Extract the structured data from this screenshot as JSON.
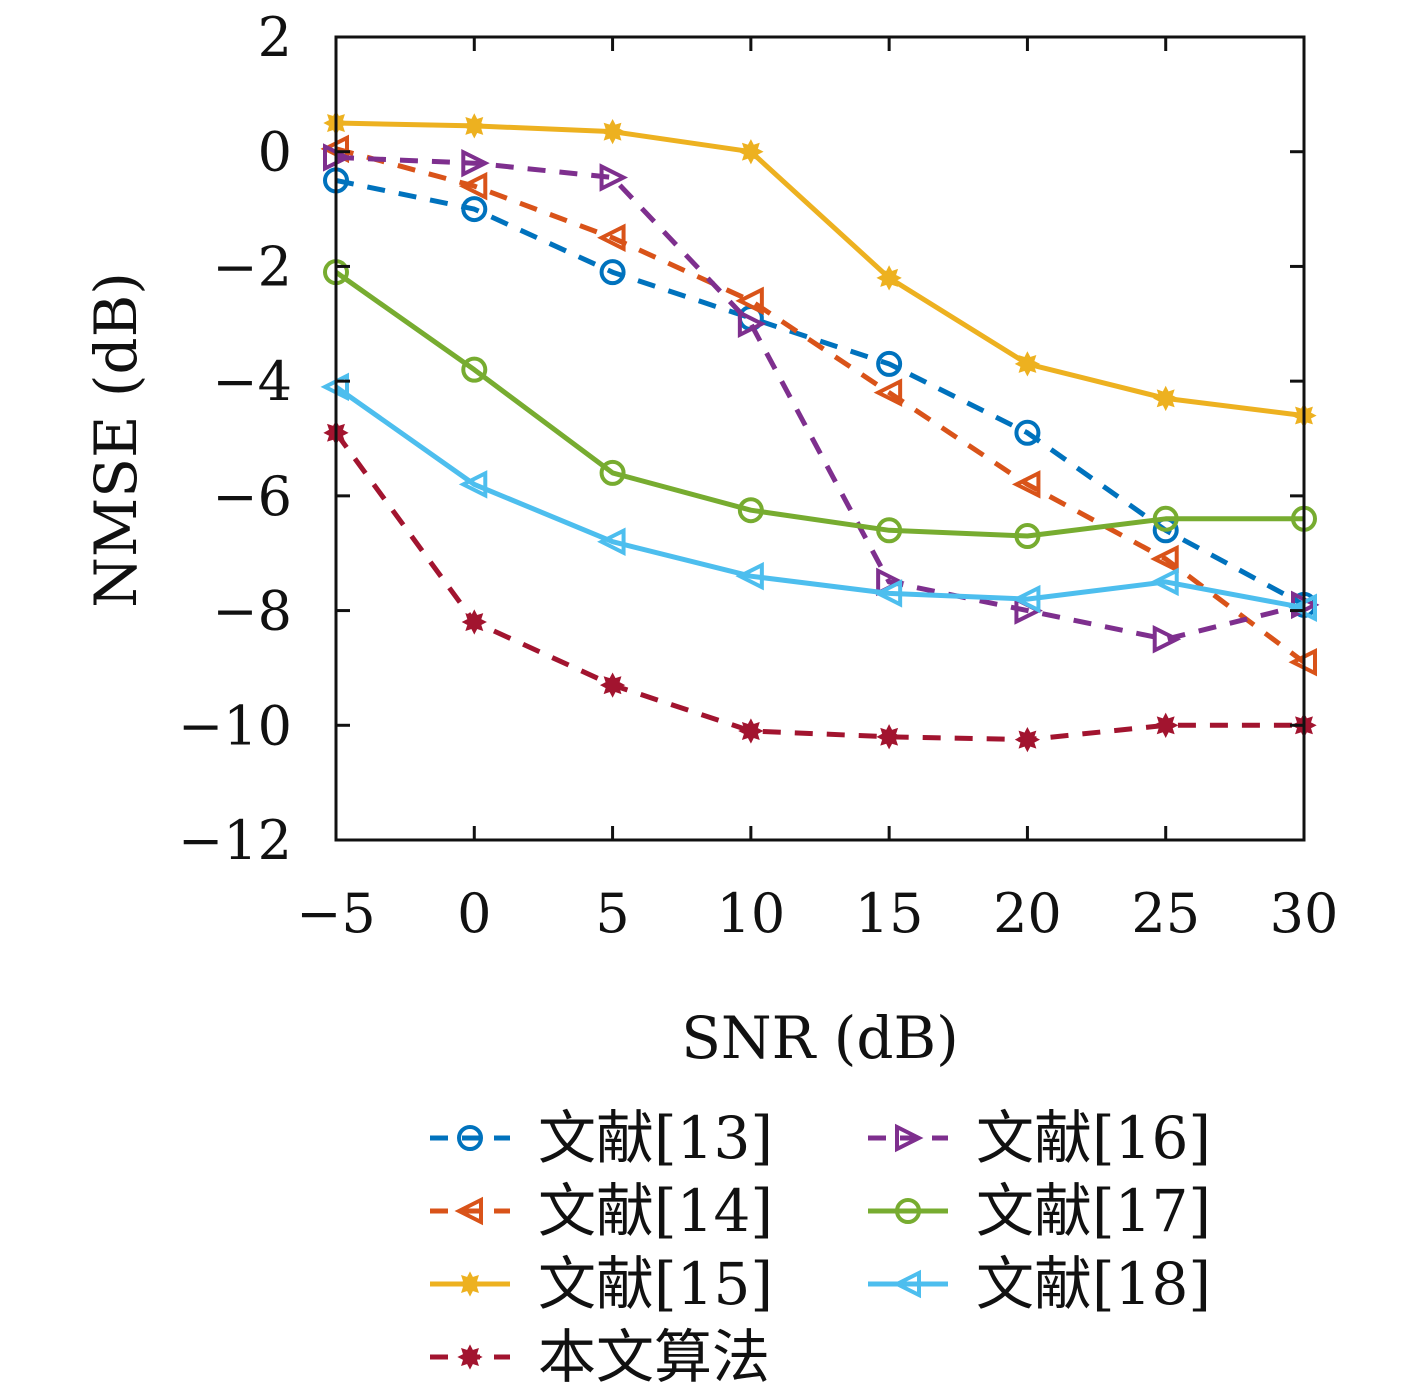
{
  "chart_data": {
    "type": "line",
    "xlabel": "SNR (dB)",
    "ylabel": "NMSE (dB)",
    "xlim": [
      -5,
      30
    ],
    "ylim": [
      -12,
      2
    ],
    "xticks": [
      -5,
      0,
      5,
      10,
      15,
      20,
      25,
      30
    ],
    "yticks": [
      2,
      0,
      -2,
      -4,
      -6,
      -8,
      -10,
      -12
    ],
    "grid": false,
    "legend_position": "bottom",
    "x": [
      -5,
      0,
      5,
      10,
      15,
      20,
      25,
      30
    ],
    "series": [
      {
        "name": "文献[13]",
        "values": [
          -0.5,
          -1.0,
          -2.1,
          -2.9,
          -3.7,
          -4.9,
          -6.6,
          -7.9
        ],
        "color": "#0072bd",
        "dash": true,
        "marker": "circle"
      },
      {
        "name": "文献[14]",
        "values": [
          0.05,
          -0.6,
          -1.5,
          -2.6,
          -4.2,
          -5.8,
          -7.1,
          -8.9
        ],
        "color": "#d95319",
        "dash": true,
        "marker": "triangle-left"
      },
      {
        "name": "文献[15]",
        "values": [
          0.5,
          0.45,
          0.35,
          0.0,
          -2.2,
          -3.7,
          -4.3,
          -4.6
        ],
        "color": "#edb120",
        "dash": false,
        "marker": "star"
      },
      {
        "name": "本文算法",
        "values": [
          -4.9,
          -8.2,
          -9.3,
          -10.1,
          -10.2,
          -10.25,
          -10.0,
          -10.0
        ],
        "color": "#a2142f",
        "dash": true,
        "marker": "star"
      },
      {
        "name": "文献[16]",
        "values": [
          -0.1,
          -0.2,
          -0.45,
          -3.0,
          -7.5,
          -8.0,
          -8.5,
          -7.9
        ],
        "color": "#7e2f8e",
        "dash": true,
        "marker": "triangle-right"
      },
      {
        "name": "文献[17]",
        "values": [
          -2.1,
          -3.8,
          -5.6,
          -6.25,
          -6.6,
          -6.7,
          -6.4,
          -6.4
        ],
        "color": "#77ac30",
        "dash": false,
        "marker": "circle"
      },
      {
        "name": "文献[18]",
        "values": [
          -4.1,
          -5.8,
          -6.8,
          -7.4,
          -7.7,
          -7.8,
          -7.5,
          -7.95
        ],
        "color": "#4dbeee",
        "dash": false,
        "marker": "triangle-left"
      }
    ]
  }
}
